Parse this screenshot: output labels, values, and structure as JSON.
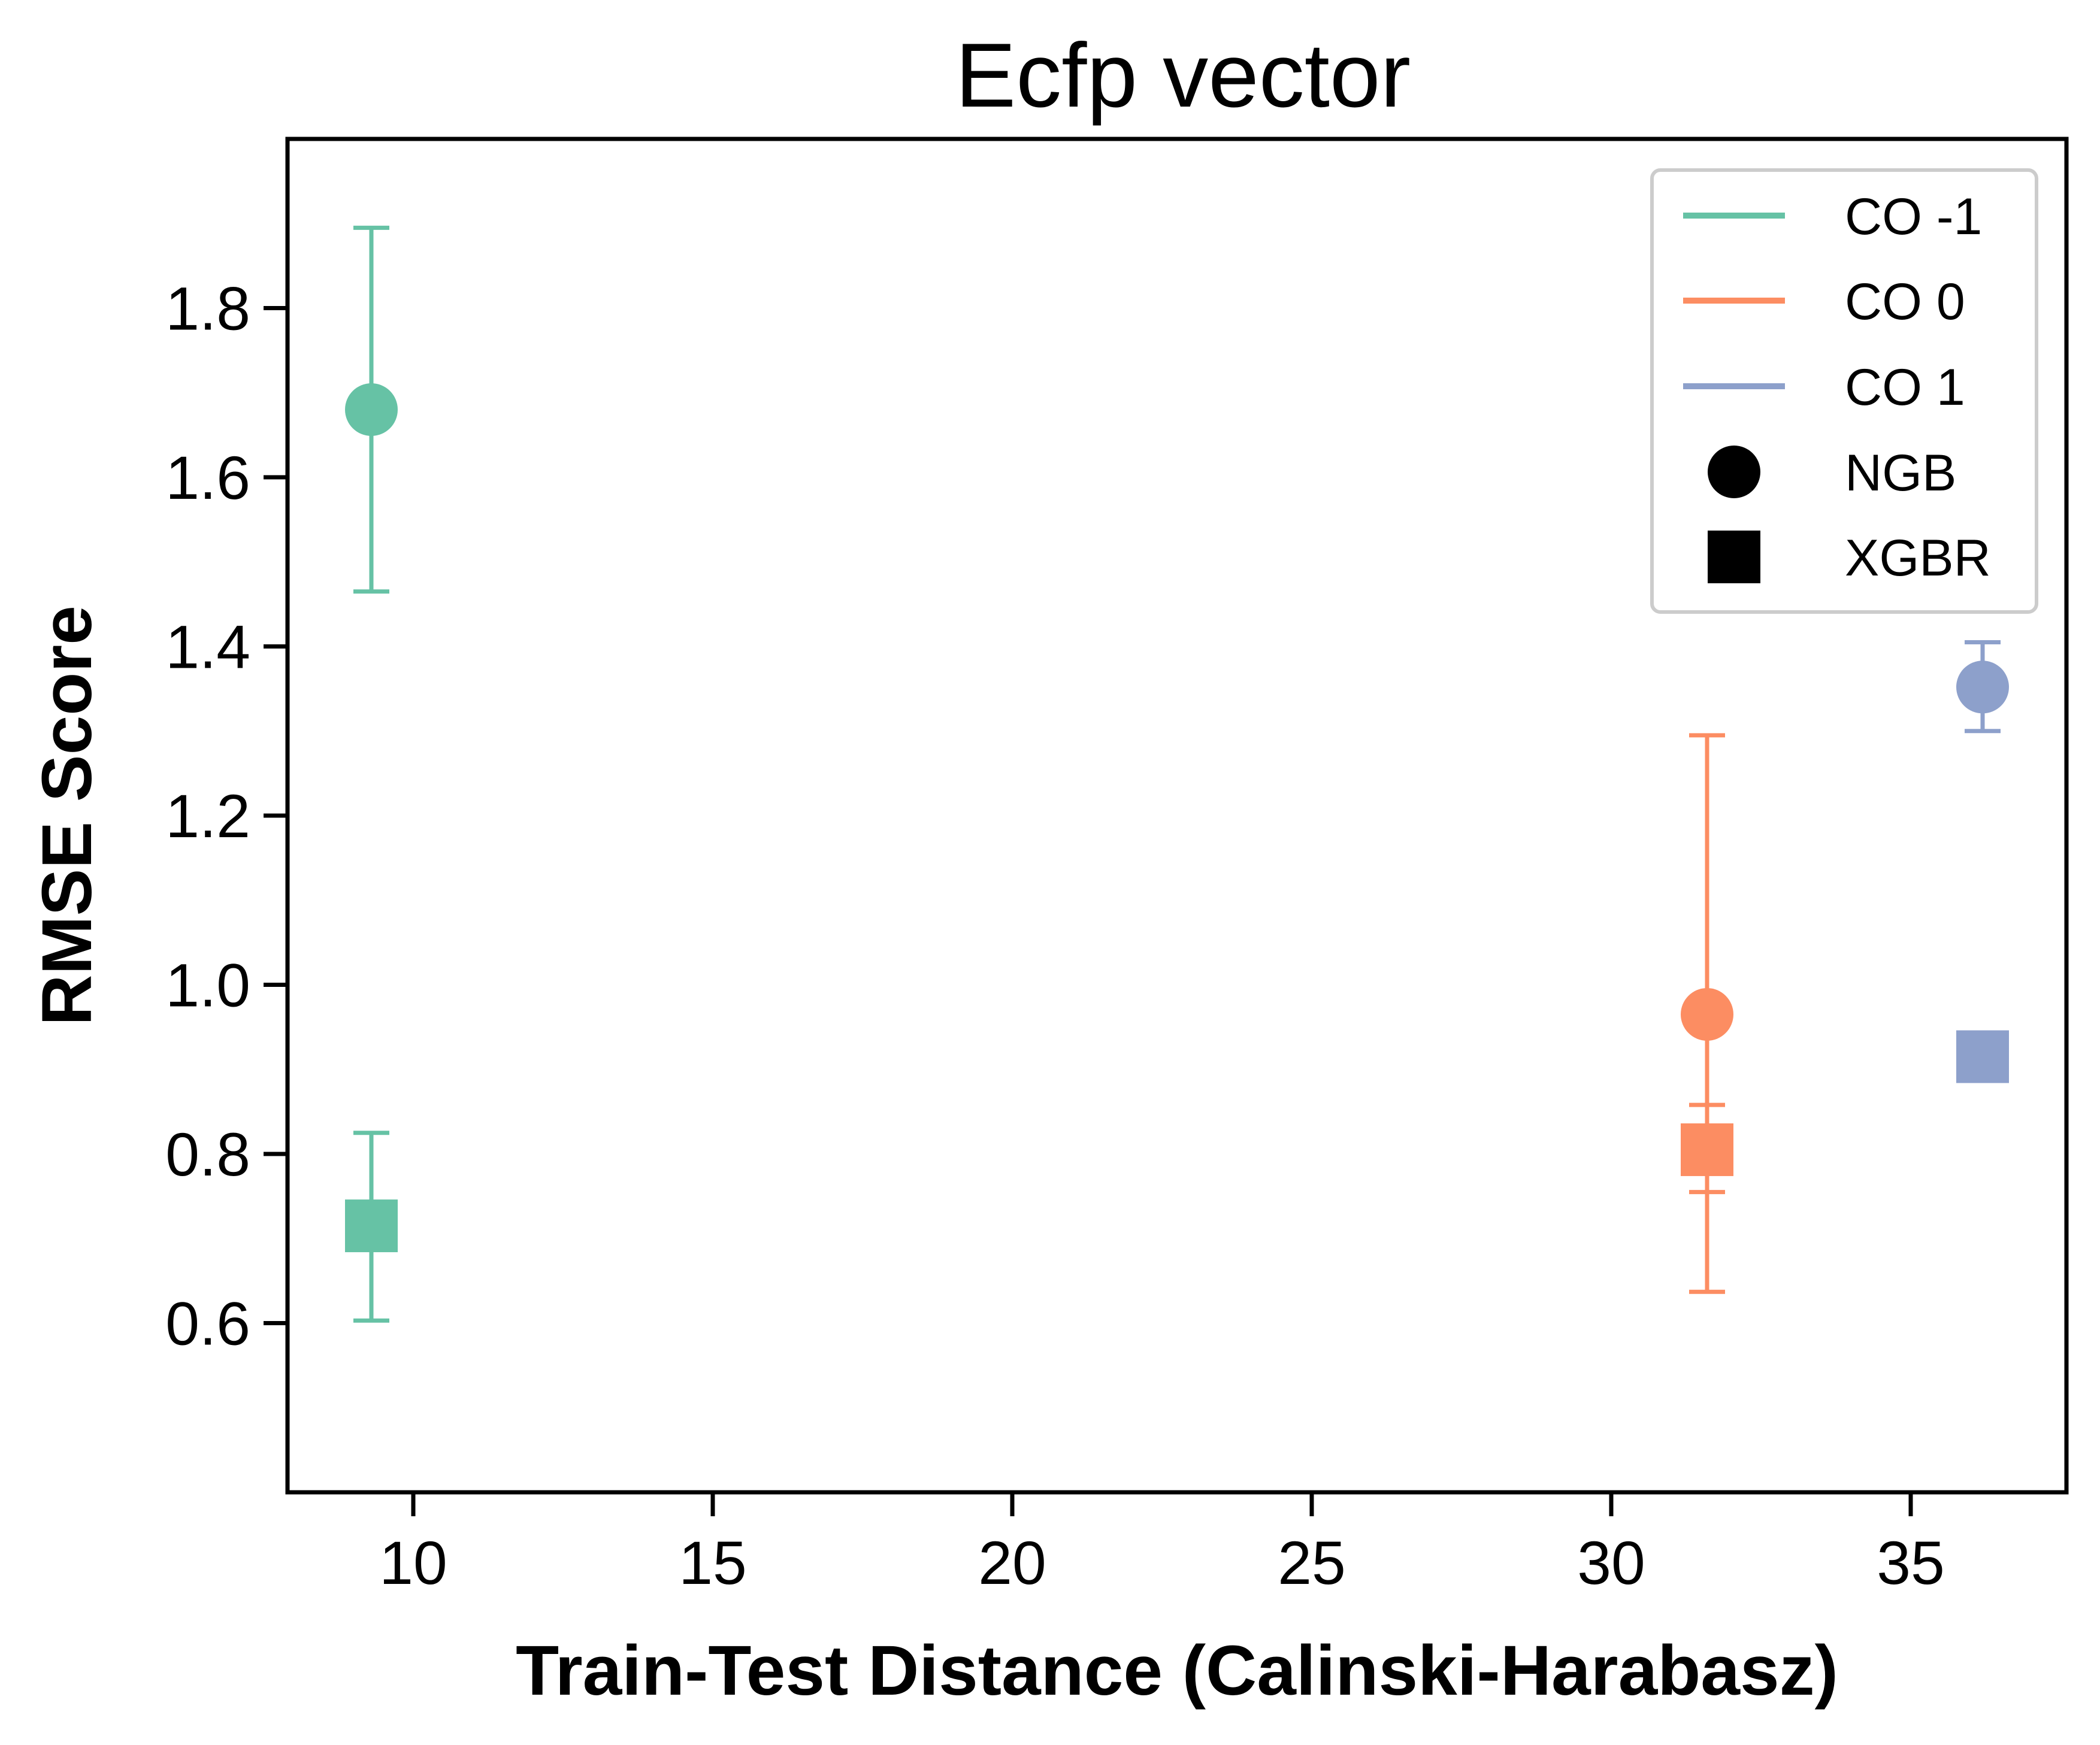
{
  "chart_data": {
    "type": "scatter",
    "title": "Ecfp vector",
    "xlabel": "Train-Test Distance (Calinski-Harabasz)",
    "ylabel": "RMSE Score",
    "xlim": [
      7.9,
      37.6
    ],
    "ylim": [
      0.4,
      2.0
    ],
    "xticks": [
      "10",
      "15",
      "20",
      "25",
      "30",
      "35"
    ],
    "xtick_values": [
      10,
      15,
      20,
      25,
      30,
      35
    ],
    "yticks": [
      "0.6",
      "0.8",
      "1.0",
      "1.2",
      "1.4",
      "1.6",
      "1.8"
    ],
    "ytick_values": [
      0.6,
      0.8,
      1.0,
      1.2,
      1.4,
      1.6,
      1.8
    ],
    "grid": false,
    "legend_position": "top-right",
    "legend": [
      {
        "label": "CO -1",
        "kind": "line",
        "color": "#66c2a5"
      },
      {
        "label": "CO 0",
        "kind": "line",
        "color": "#fc8d62"
      },
      {
        "label": "CO 1",
        "kind": "line",
        "color": "#8da0cb"
      },
      {
        "label": "NGB",
        "kind": "circle",
        "color": "#000000"
      },
      {
        "label": "XGBR",
        "kind": "square",
        "color": "#000000"
      }
    ],
    "points": [
      {
        "group": "CO -1",
        "model": "NGB",
        "x": 9.3,
        "y": 1.68,
        "yerr_low": 1.465,
        "yerr_high": 1.895,
        "color": "#66c2a5",
        "marker": "circle"
      },
      {
        "group": "CO -1",
        "model": "XGBR",
        "x": 9.3,
        "y": 0.715,
        "yerr_low": 0.603,
        "yerr_high": 0.825,
        "color": "#66c2a5",
        "marker": "square"
      },
      {
        "group": "CO 0",
        "model": "NGB",
        "x": 31.6,
        "y": 0.965,
        "yerr_low": 0.755,
        "yerr_high": 1.295,
        "color": "#fc8d62",
        "marker": "circle"
      },
      {
        "group": "CO 0",
        "model": "XGBR",
        "x": 31.6,
        "y": 0.805,
        "yerr_low": 0.637,
        "yerr_high": 0.858,
        "color": "#fc8d62",
        "marker": "square"
      },
      {
        "group": "CO 1",
        "model": "NGB",
        "x": 36.2,
        "y": 1.352,
        "yerr_low": 1.3,
        "yerr_high": 1.405,
        "color": "#8da0cb",
        "marker": "circle"
      },
      {
        "group": "CO 1",
        "model": "XGBR",
        "x": 36.2,
        "y": 0.915,
        "yerr_low": null,
        "yerr_high": null,
        "color": "#8da0cb",
        "marker": "square"
      }
    ]
  }
}
